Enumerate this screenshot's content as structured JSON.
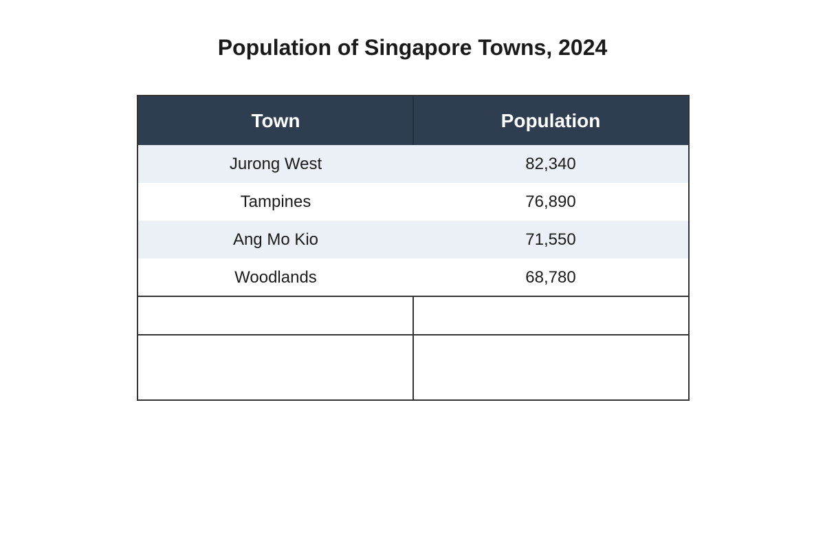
{
  "chart_data": {
    "type": "table",
    "title": "Population of Singapore Towns, 2024",
    "columns": [
      "Town",
      "Population"
    ],
    "rows": [
      [
        "Jurong West",
        "82,340"
      ],
      [
        "Tampines",
        "76,890"
      ],
      [
        "Ang Mo Kio",
        "71,550"
      ],
      [
        "Woodlands",
        "68,780"
      ]
    ]
  },
  "colors": {
    "header_bg": "#2e3e50",
    "row_shade": "#eaf0f6",
    "border": "#333333"
  }
}
